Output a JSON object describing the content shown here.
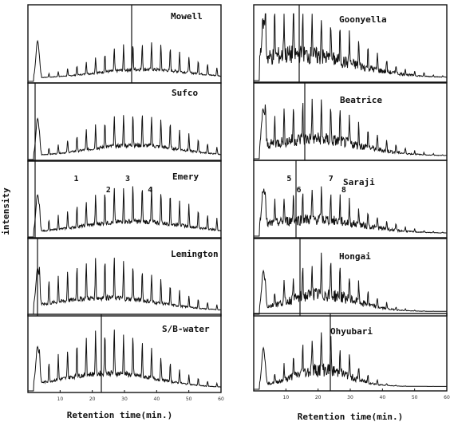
{
  "chart_data": [
    {
      "type": "line",
      "panel": "left",
      "ylabel": "intensity",
      "xlabel": "Retention time(min.)",
      "xlim": [
        0,
        60
      ],
      "xticks": [
        10,
        20,
        30,
        40,
        50,
        60
      ],
      "series": [
        {
          "name": "Mowell",
          "peak_labels": []
        },
        {
          "name": "Sufco",
          "peak_labels": []
        },
        {
          "name": "Emery",
          "peak_labels": [
            {
              "label": "1",
              "x": 15
            },
            {
              "label": "2",
              "x": 25
            },
            {
              "label": "3",
              "x": 31
            },
            {
              "label": "4",
              "x": 38
            }
          ]
        },
        {
          "name": "Lemington",
          "peak_labels": []
        },
        {
          "name": "S/B-water",
          "peak_labels": []
        }
      ]
    },
    {
      "type": "line",
      "panel": "right",
      "xlabel": "Retention time(min.)",
      "xlim": [
        0,
        60
      ],
      "xticks": [
        10,
        20,
        30,
        40,
        50,
        60
      ],
      "series": [
        {
          "name": "Goonyella",
          "peak_labels": []
        },
        {
          "name": "Beatrice",
          "peak_labels": []
        },
        {
          "name": "Saraji",
          "peak_labels": [
            {
              "label": "5",
              "x": 11
            },
            {
              "label": "6",
              "x": 14
            },
            {
              "label": "7",
              "x": 24
            },
            {
              "label": "8",
              "x": 28
            }
          ]
        },
        {
          "name": "Hongai",
          "peak_labels": []
        },
        {
          "name": "Ohyubari",
          "peak_labels": []
        }
      ]
    }
  ]
}
